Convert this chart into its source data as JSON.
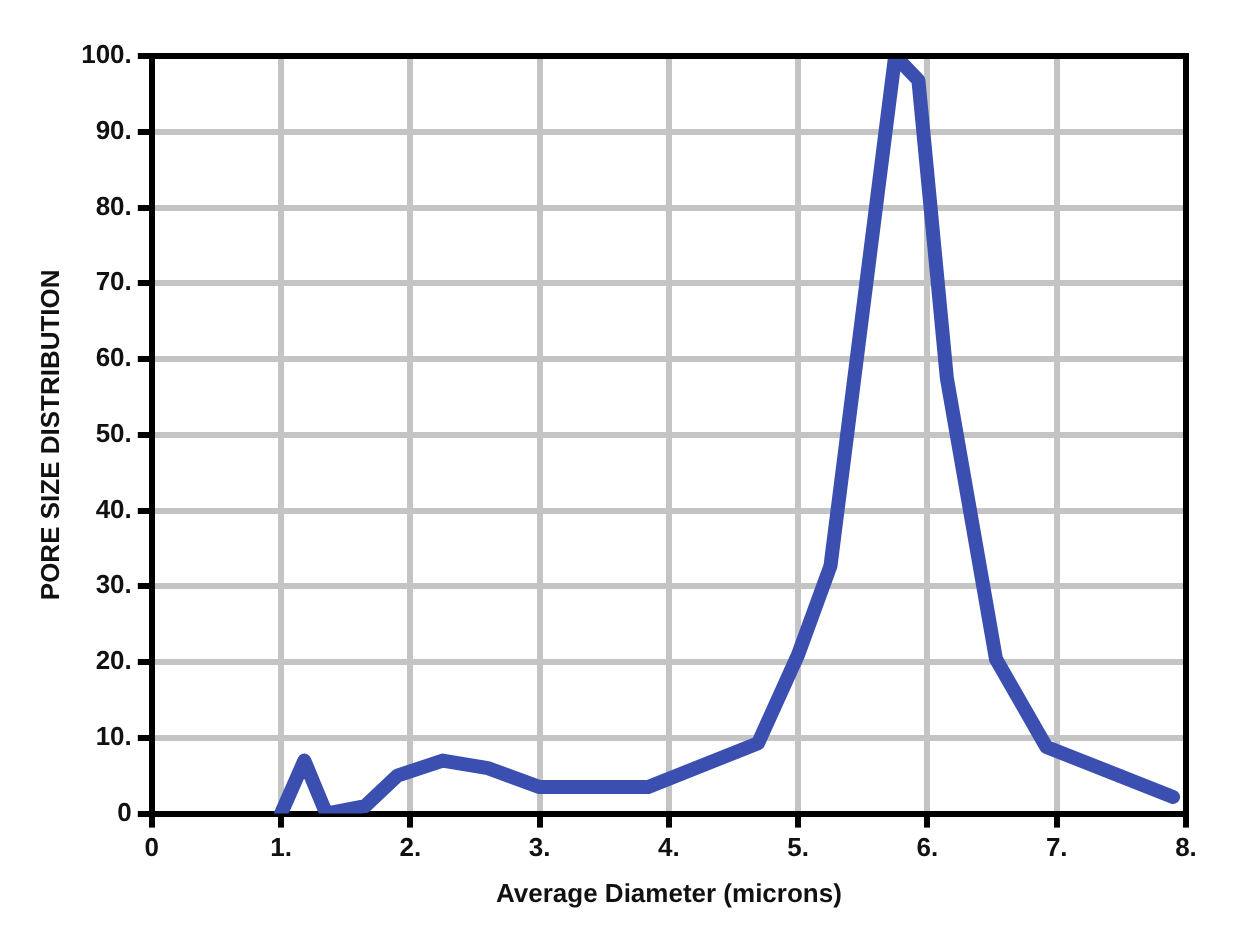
{
  "chart_data": {
    "type": "line",
    "xlabel": "Average Diameter (microns)",
    "ylabel": "PORE SIZE DISTRIBUTION",
    "x": [
      1.0,
      1.18,
      1.35,
      1.65,
      1.9,
      2.25,
      2.6,
      3.0,
      3.84,
      4.69,
      5.0,
      5.25,
      5.75,
      5.93,
      6.15,
      6.53,
      6.92,
      7.9
    ],
    "series": [
      {
        "color": "#3a4fb0",
        "values": [
          0,
          7,
          0,
          1,
          5,
          7,
          6,
          3.5,
          3.5,
          9.3,
          21,
          32.7,
          100,
          96.8,
          57.5,
          20.4,
          8.8,
          2.2
        ]
      }
    ],
    "xlim": [
      0,
      8
    ],
    "xticks": [
      0,
      {
        "value": 1,
        "label": "1."
      },
      {
        "value": 2,
        "label": "2."
      },
      {
        "value": 3,
        "label": "3."
      },
      {
        "value": 4,
        "label": "4."
      },
      {
        "value": 5,
        "label": "5."
      },
      {
        "value": 6,
        "label": "6."
      },
      {
        "value": 7,
        "label": "7."
      },
      {
        "value": 8,
        "label": "8."
      }
    ],
    "ylim": [
      0,
      100
    ],
    "yticks": [
      0,
      {
        "value": 10,
        "label": "10."
      },
      {
        "value": 20,
        "label": "20."
      },
      {
        "value": 30,
        "label": "30."
      },
      {
        "value": 40,
        "label": "40."
      },
      {
        "value": 50,
        "label": "50."
      },
      {
        "value": 60,
        "label": "60."
      },
      {
        "value": 70,
        "label": "70."
      },
      {
        "value": 80,
        "label": "80."
      },
      {
        "value": 90,
        "label": "90."
      },
      {
        "value": 100,
        "label": "100."
      }
    ],
    "grid": true,
    "legend": false,
    "marker": "none",
    "line_style": "solid"
  }
}
